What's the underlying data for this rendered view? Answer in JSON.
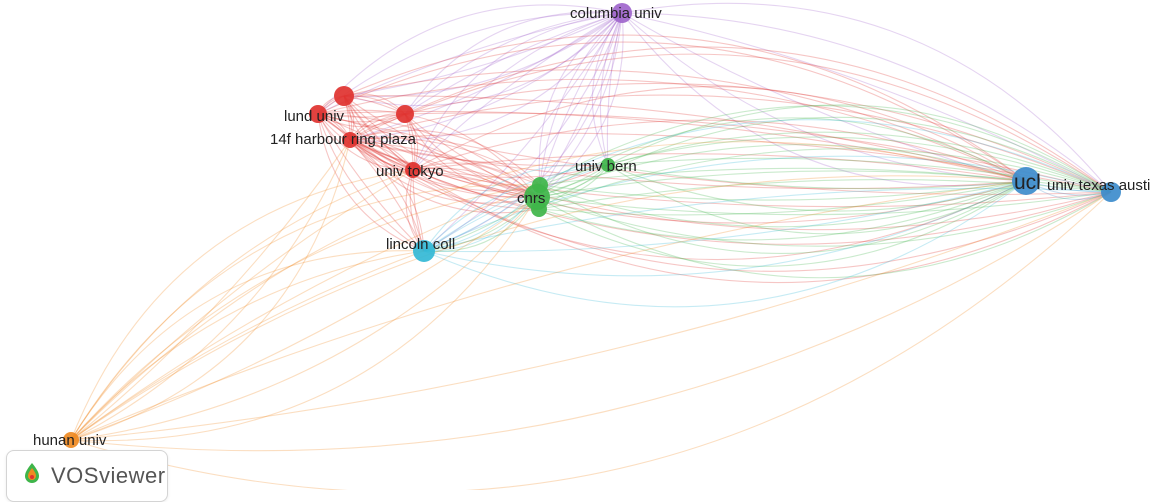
{
  "app": "VOSviewer",
  "network": {
    "clusters": {
      "red": "#e0322f",
      "green": "#3fb54a",
      "blue": "#3d8ccc",
      "cyan": "#33b8d6",
      "purple": "#a066cc",
      "orange": "#ef8a22"
    },
    "nodes": [
      {
        "id": "columbia",
        "label": "columbia univ",
        "cluster": "purple"
      },
      {
        "id": "lund",
        "label": "lund univ",
        "cluster": "red"
      },
      {
        "id": "harbour",
        "label": "14f harbour ring plaza",
        "cluster": "red"
      },
      {
        "id": "tokyo",
        "label": "univ tokyo",
        "cluster": "red"
      },
      {
        "id": "r_a",
        "label": "",
        "cluster": "red"
      },
      {
        "id": "r_b",
        "label": "",
        "cluster": "red"
      },
      {
        "id": "bern",
        "label": "univ bern",
        "cluster": "green"
      },
      {
        "id": "cnrs",
        "label": "cnrs",
        "cluster": "green"
      },
      {
        "id": "g_a",
        "label": "",
        "cluster": "green"
      },
      {
        "id": "g_b",
        "label": "",
        "cluster": "green"
      },
      {
        "id": "lincoln",
        "label": "lincoln coll",
        "cluster": "cyan"
      },
      {
        "id": "ucl",
        "label": "ucl",
        "cluster": "blue"
      },
      {
        "id": "texas",
        "label": "univ texas austi",
        "cluster": "blue"
      },
      {
        "id": "hunan",
        "label": "hunan univ",
        "cluster": "orange"
      }
    ],
    "links": [
      [
        "columbia",
        "lund"
      ],
      [
        "columbia",
        "harbour"
      ],
      [
        "columbia",
        "tokyo"
      ],
      [
        "columbia",
        "r_a"
      ],
      [
        "columbia",
        "r_b"
      ],
      [
        "columbia",
        "cnrs"
      ],
      [
        "columbia",
        "g_a"
      ],
      [
        "columbia",
        "lincoln"
      ],
      [
        "columbia",
        "ucl"
      ],
      [
        "columbia",
        "texas"
      ],
      [
        "columbia",
        "bern"
      ],
      [
        "lund",
        "harbour"
      ],
      [
        "lund",
        "tokyo"
      ],
      [
        "lund",
        "r_a"
      ],
      [
        "lund",
        "r_b"
      ],
      [
        "lund",
        "cnrs"
      ],
      [
        "lund",
        "lincoln"
      ],
      [
        "lund",
        "ucl"
      ],
      [
        "lund",
        "texas"
      ],
      [
        "harbour",
        "tokyo"
      ],
      [
        "harbour",
        "r_a"
      ],
      [
        "harbour",
        "r_b"
      ],
      [
        "harbour",
        "cnrs"
      ],
      [
        "harbour",
        "g_a"
      ],
      [
        "harbour",
        "g_b"
      ],
      [
        "harbour",
        "lincoln"
      ],
      [
        "harbour",
        "ucl"
      ],
      [
        "harbour",
        "texas"
      ],
      [
        "harbour",
        "bern"
      ],
      [
        "tokyo",
        "r_a"
      ],
      [
        "tokyo",
        "r_b"
      ],
      [
        "tokyo",
        "cnrs"
      ],
      [
        "tokyo",
        "lincoln"
      ],
      [
        "tokyo",
        "ucl"
      ],
      [
        "tokyo",
        "texas"
      ],
      [
        "r_a",
        "r_b"
      ],
      [
        "r_a",
        "cnrs"
      ],
      [
        "r_a",
        "ucl"
      ],
      [
        "r_b",
        "cnrs"
      ],
      [
        "r_b",
        "texas"
      ],
      [
        "cnrs",
        "bern"
      ],
      [
        "cnrs",
        "g_a"
      ],
      [
        "cnrs",
        "g_b"
      ],
      [
        "cnrs",
        "ucl"
      ],
      [
        "cnrs",
        "texas"
      ],
      [
        "cnrs",
        "lincoln"
      ],
      [
        "g_a",
        "ucl"
      ],
      [
        "g_a",
        "texas"
      ],
      [
        "g_b",
        "ucl"
      ],
      [
        "g_b",
        "texas"
      ],
      [
        "bern",
        "ucl"
      ],
      [
        "bern",
        "texas"
      ],
      [
        "lincoln",
        "ucl"
      ],
      [
        "lincoln",
        "texas"
      ],
      [
        "lincoln",
        "g_a"
      ],
      [
        "lincoln",
        "bern"
      ],
      [
        "ucl",
        "texas"
      ],
      [
        "hunan",
        "lincoln"
      ],
      [
        "hunan",
        "cnrs"
      ],
      [
        "hunan",
        "tokyo"
      ],
      [
        "hunan",
        "harbour"
      ],
      [
        "hunan",
        "ucl"
      ],
      [
        "hunan",
        "texas"
      ],
      [
        "hunan",
        "g_a"
      ]
    ]
  },
  "logo": {
    "text": "VOSviewer"
  }
}
